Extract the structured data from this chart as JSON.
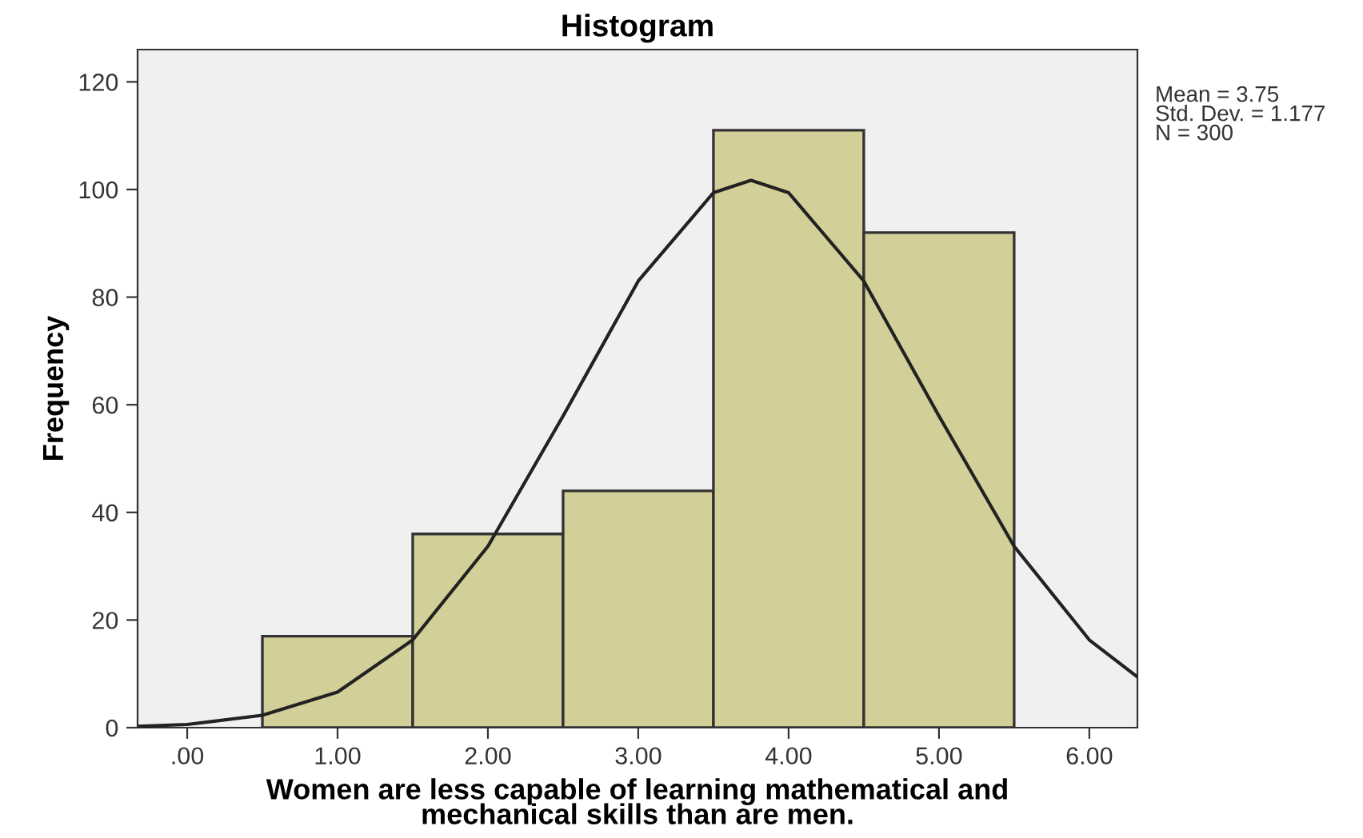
{
  "chart_data": {
    "type": "histogram",
    "title": "Histogram",
    "xlabel": "Women are less capable of learning mathematical and\nmechanical skills than are men.",
    "ylabel": "Frequency",
    "bins": [
      0.5,
      1.5,
      2.5,
      3.5,
      4.5,
      5.5
    ],
    "values": [
      17,
      36,
      44,
      111,
      92
    ],
    "color": "#d3cf98",
    "series": [
      {
        "type": "line",
        "color": "#222222",
        "x": [
          -0.33,
          0,
          0.5,
          1,
          1.5,
          2,
          2.5,
          3,
          3.5,
          3.75,
          4,
          4.5,
          5,
          5.5,
          6,
          6.32
        ],
        "values": [
          0.25,
          0.6,
          2.3,
          6.6,
          16.3,
          33.7,
          57.9,
          83,
          99.4,
          101.7,
          99.4,
          83,
          57.9,
          33.7,
          16.3,
          9.4
        ]
      }
    ],
    "xlim": [
      -0.33,
      6.32
    ],
    "xticks": [
      {
        "value": 0,
        "label": ".00"
      },
      {
        "value": 1,
        "label": "1.00"
      },
      {
        "value": 2,
        "label": "2.00"
      },
      {
        "value": 3,
        "label": "3.00"
      },
      {
        "value": 4,
        "label": "4.00"
      },
      {
        "value": 5,
        "label": "5.00"
      },
      {
        "value": 6,
        "label": "6.00"
      }
    ],
    "ylim": [
      0,
      126
    ],
    "yticks": [
      0,
      20,
      40,
      60,
      80,
      100,
      120
    ],
    "grid": false,
    "annotations": [
      "Mean = 3.75",
      "Std. Dev. = 1.177",
      "N = 300"
    ]
  }
}
